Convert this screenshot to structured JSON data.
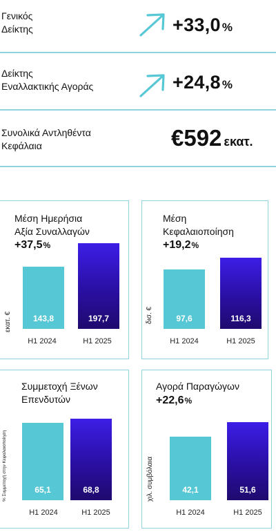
{
  "kpis": {
    "general_index": {
      "label_line1": "Γενικός",
      "label_line2": "Δείκτης",
      "value": "+33,0",
      "unit": "%",
      "icon": "arrow-up-right-icon"
    },
    "alt_market_index": {
      "label_line1": "Δείκτης",
      "label_line2": "Εναλλακτικής Αγοράς",
      "value": "+24,8",
      "unit": "%",
      "icon": "arrow-up-right-icon"
    },
    "capital_raised": {
      "label_line1": "Συνολικά Αντληθέντα",
      "label_line2": "Κεφάλαια",
      "value": "€592",
      "unit": "εκατ."
    }
  },
  "colors": {
    "accent_cyan": "#56c7d4",
    "divider_cyan": "#8fd3de",
    "accent_indigo": "#2a0fa3"
  },
  "chart_data": [
    {
      "type": "bar",
      "title_line1": "Μέση Ημερήσια",
      "title_line2": "Αξία Συναλλαγών",
      "growth": "+37,5",
      "growth_unit": "%",
      "ylabel": "εκατ. €",
      "categories": [
        "H1 2024",
        "H1 2025"
      ],
      "values": [
        143.8,
        197.7
      ],
      "value_labels": [
        "143,8",
        "197,7"
      ],
      "ylim": [
        0,
        197.7
      ]
    },
    {
      "type": "bar",
      "title_line1": "Μέση",
      "title_line2": "Κεφαλαιοποίηση",
      "growth": "+19,2",
      "growth_unit": "%",
      "ylabel": "δισ. €",
      "categories": [
        "H1 2024",
        "H1 2025"
      ],
      "values": [
        97.6,
        116.3
      ],
      "value_labels": [
        "97,6",
        "116,3"
      ],
      "ylim": [
        0,
        116.3
      ]
    },
    {
      "type": "bar",
      "title_line1": "Συμμετοχή Ξένων",
      "title_line2": "Επενδυτών",
      "growth": "",
      "growth_unit": "",
      "ylabel": "% Συμμετοχή στην Κεφαλαιοποίηση",
      "categories": [
        "H1 2024",
        "H1 2025"
      ],
      "values": [
        65.1,
        68.8
      ],
      "value_labels": [
        "65,1",
        "68,8"
      ],
      "ylim": [
        0,
        68.8
      ]
    },
    {
      "type": "bar",
      "title_line1": "Αγορά Παραγώγων",
      "title_line2": "",
      "growth": "+22,6",
      "growth_unit": "%",
      "ylabel": "χιλ. συμβόλαια",
      "categories": [
        "H1 2024",
        "H1 2025"
      ],
      "values": [
        42.1,
        51.6
      ],
      "value_labels": [
        "42,1",
        "51,6"
      ],
      "ylim": [
        0,
        51.6
      ]
    }
  ]
}
